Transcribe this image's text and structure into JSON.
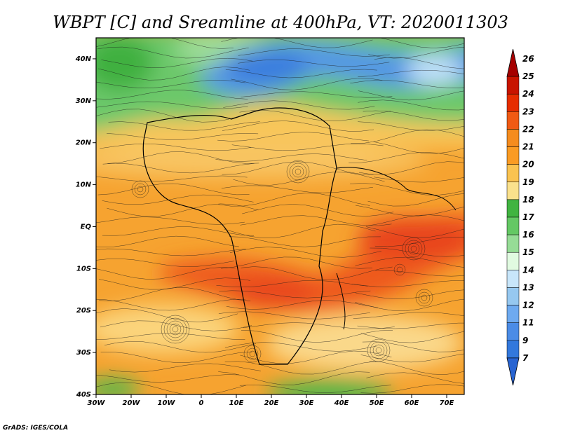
{
  "title": "WBPT [C] and Sreamline at 400hPa, VT: 2020011303",
  "credit": "GrADS: IGES/COLA",
  "map": {
    "lon_range": [
      -30,
      75
    ],
    "lat_range": [
      -40,
      45
    ],
    "lon_ticks": [
      {
        "value": -30,
        "label": "30W"
      },
      {
        "value": -20,
        "label": "20W"
      },
      {
        "value": -10,
        "label": "10W"
      },
      {
        "value": 0,
        "label": "0"
      },
      {
        "value": 10,
        "label": "10E"
      },
      {
        "value": 20,
        "label": "20E"
      },
      {
        "value": 30,
        "label": "30E"
      },
      {
        "value": 40,
        "label": "40E"
      },
      {
        "value": 50,
        "label": "50E"
      },
      {
        "value": 60,
        "label": "60E"
      },
      {
        "value": 70,
        "label": "70E"
      }
    ],
    "lat_ticks": [
      {
        "value": 40,
        "label": "40N"
      },
      {
        "value": 30,
        "label": "30N"
      },
      {
        "value": 20,
        "label": "20N"
      },
      {
        "value": 10,
        "label": "10N"
      },
      {
        "value": 0,
        "label": "EQ"
      },
      {
        "value": -10,
        "label": "10S"
      },
      {
        "value": -20,
        "label": "20S"
      },
      {
        "value": -30,
        "label": "30S"
      },
      {
        "value": -40,
        "label": "40S"
      }
    ]
  },
  "colorbar": {
    "levels": [
      {
        "label": "26",
        "color": "#a50000"
      },
      {
        "label": "25",
        "color": "#c81400"
      },
      {
        "label": "24",
        "color": "#e62d00"
      },
      {
        "label": "23",
        "color": "#f05a14"
      },
      {
        "label": "22",
        "color": "#f58c1e"
      },
      {
        "label": "21",
        "color": "#fa9b23"
      },
      {
        "label": "20",
        "color": "#fac350"
      },
      {
        "label": "19",
        "color": "#fae18c"
      },
      {
        "label": "18",
        "color": "#41b441"
      },
      {
        "label": "17",
        "color": "#64c864"
      },
      {
        "label": "16",
        "color": "#96dc96"
      },
      {
        "label": "15",
        "color": "#e1fae1"
      },
      {
        "label": "14",
        "color": "#c8e6fa"
      },
      {
        "label": "13",
        "color": "#96c8f0"
      },
      {
        "label": "12",
        "color": "#6eaaf0"
      },
      {
        "label": "11",
        "color": "#4b8ce6"
      },
      {
        "label": "9",
        "color": "#3278dc"
      },
      {
        "label": "7",
        "color": "#2864d2"
      }
    ]
  }
}
